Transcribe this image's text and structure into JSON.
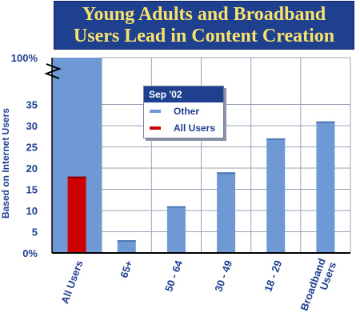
{
  "title_lines": [
    "Young Adults and Broadband",
    "Users Lead in Content Creation"
  ],
  "chart_data": {
    "type": "bar",
    "title": "Young Adults and Broadband Users Lead in Content Creation",
    "ylabel": "Based on Internet Users",
    "categories": [
      "All Users",
      "65+",
      "50 - 64",
      "30 - 49",
      "18 - 29",
      "Broadband Users"
    ],
    "category_lines": [
      [
        "All Users"
      ],
      [
        "65+"
      ],
      [
        "50 - 64"
      ],
      [
        "30 - 49"
      ],
      [
        "18 - 29"
      ],
      [
        "Broadband",
        "Users"
      ]
    ],
    "values": [
      18,
      3,
      11,
      19,
      27,
      31
    ],
    "bar_colors": [
      "#cc0000",
      "#6f99d4",
      "#6f99d4",
      "#6f99d4",
      "#6f99d4",
      "#6f99d4"
    ],
    "ylim": [
      0,
      40
    ],
    "yticks": [
      0,
      5,
      10,
      15,
      20,
      25,
      30,
      35
    ],
    "ytick_labels": [
      "0%",
      "5",
      "10",
      "15",
      "20",
      "25",
      "30",
      "35"
    ],
    "axis_break": true,
    "top_tick_label": "100%",
    "grid": true,
    "legend": {
      "title": "Sep '02",
      "placement": "top-center",
      "entries": [
        {
          "label": "Other",
          "color": "#6f99d4"
        },
        {
          "label": "All Users",
          "color": "#cc0000"
        }
      ]
    },
    "colors": {
      "title_bg": "#1f3f8f",
      "title_text": "#f7e36b",
      "highlight_column": "#6f99d4",
      "grid": "#9aa3b5",
      "axis_text": "#1f3f8f"
    }
  }
}
